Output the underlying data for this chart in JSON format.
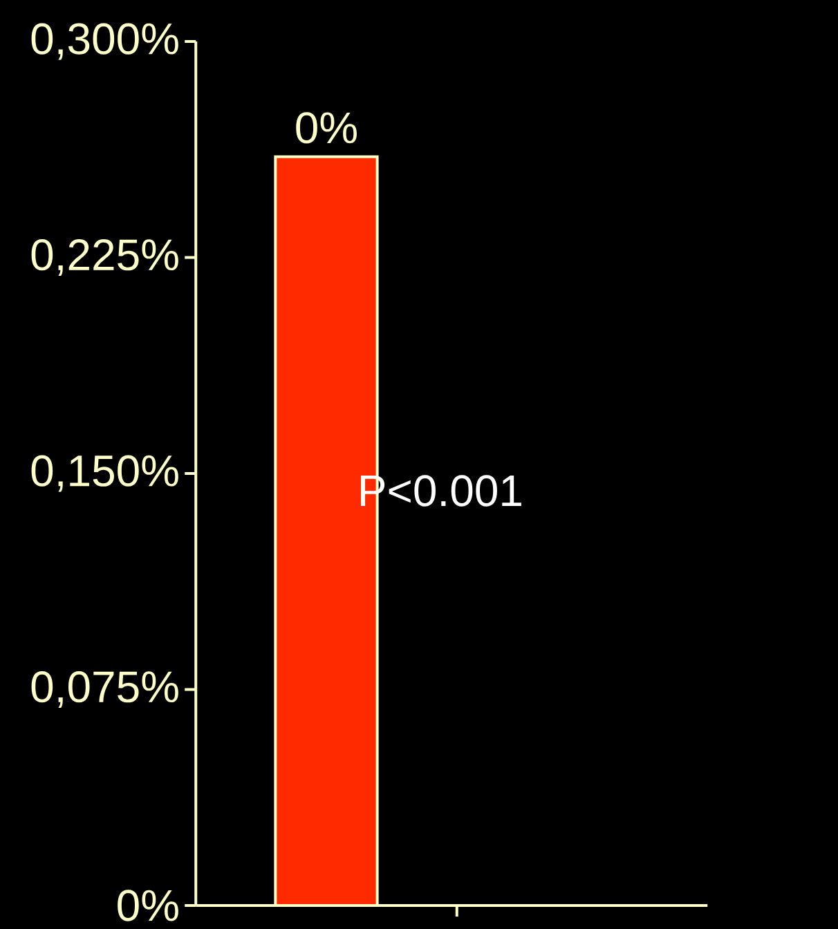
{
  "chart_data": {
    "type": "bar",
    "categories": [
      null,
      null
    ],
    "values": [
      0.26,
      null
    ],
    "value_labels": [
      "0%",
      null
    ],
    "color": "#ff2a00",
    "ylim": [
      0,
      0.3
    ],
    "yticks": [
      {
        "value": 0,
        "label": "0%"
      },
      {
        "value": 0.075,
        "label": "0,075%"
      },
      {
        "value": 0.15,
        "label": "0,150%"
      },
      {
        "value": 0.225,
        "label": "0,225%"
      },
      {
        "value": 0.3,
        "label": "0,300%"
      }
    ],
    "annotations": [
      "P<0.001"
    ],
    "tick_labels": "y",
    "grid": false
  }
}
